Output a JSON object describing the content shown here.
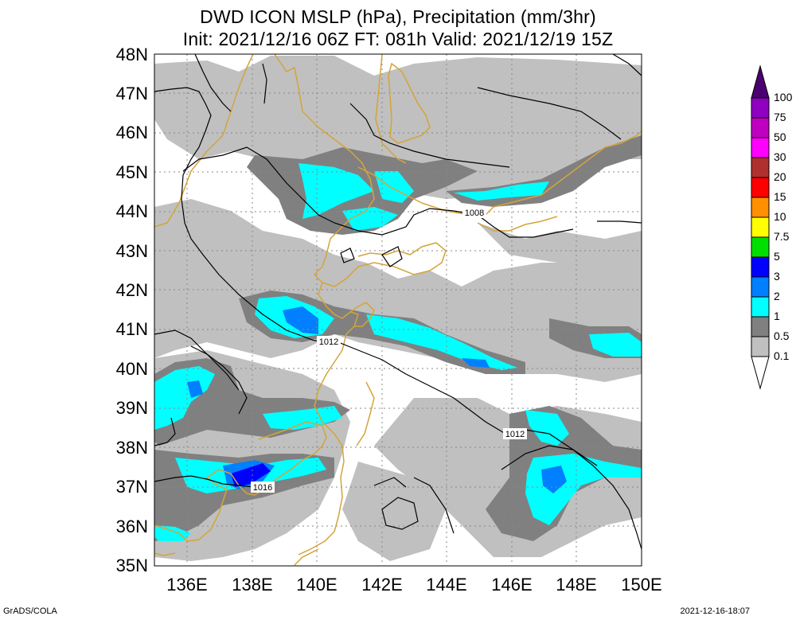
{
  "title": {
    "line1": "DWD ICON MSLP (hPa), Precipitation (mm/3hr)",
    "line2": "Init: 2021/12/16 06Z  FT: 081h  Valid: 2021/12/19 15Z"
  },
  "map": {
    "lon_labels": [
      "136E",
      "138E",
      "140E",
      "142E",
      "144E",
      "146E",
      "148E",
      "150E"
    ],
    "lat_labels": [
      "35N",
      "36N",
      "37N",
      "38N",
      "39N",
      "40N",
      "41N",
      "42N",
      "43N",
      "44N",
      "45N",
      "46N",
      "47N",
      "48N"
    ],
    "isobar_labels": [
      "1008",
      "1012",
      "1012",
      "1016"
    ],
    "colors": {
      "coast": "#d4a43a",
      "isobar": "#000000",
      "grid": "#888888",
      "gray_light": "#c0c0c0",
      "gray_dark": "#808080",
      "cyan": "#00ffff",
      "blue_light": "#0080ff",
      "blue": "#0000ff"
    }
  },
  "legend": {
    "labels": [
      "100",
      "75",
      "50",
      "30",
      "20",
      "15",
      "10",
      "7.5",
      "5",
      "3",
      "2",
      "1",
      "0.5",
      "0.1"
    ],
    "colors": [
      "#9000c0",
      "#c000c0",
      "#ff00ff",
      "#b03030",
      "#ff0000",
      "#ff9000",
      "#ffff00",
      "#00e000",
      "#0000ff",
      "#0080ff",
      "#00ffff",
      "#808080",
      "#c0c0c0"
    ],
    "top_arrow_color": "#4a0070"
  },
  "footer": {
    "left": "GrADS/COLA",
    "right": "2021-12-16-18:07"
  }
}
